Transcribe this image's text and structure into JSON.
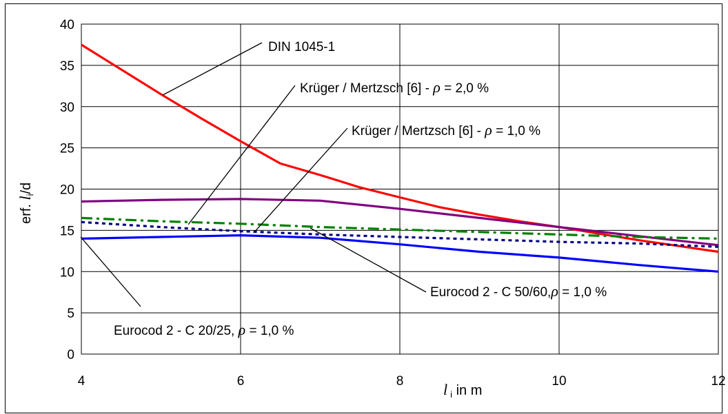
{
  "chart_data": {
    "type": "line",
    "xlabel": {
      "var": "l",
      "sub": "i",
      "rest": " in m"
    },
    "ylabel": {
      "pre": "erf. ",
      "var": "l",
      "sub": "i",
      "post": "/d"
    },
    "xlim": [
      4,
      12
    ],
    "ylim": [
      0,
      40
    ],
    "xticks": [
      "4",
      "6",
      "8",
      "10",
      "12"
    ],
    "yticks": [
      "0",
      "5",
      "10",
      "15",
      "20",
      "25",
      "30",
      "35",
      "40"
    ],
    "grid": true,
    "series": [
      {
        "name": "DIN 1045-1",
        "color": "#ff0000",
        "dash": "",
        "x": [
          4,
          4.5,
          5,
          5.5,
          6,
          6.5,
          7,
          7.5,
          8,
          8.5,
          9,
          9.5,
          10,
          10.5,
          11,
          11.5,
          12
        ],
        "y": [
          37.5,
          34.5,
          31.5,
          28.6,
          25.8,
          23.1,
          21.7,
          20.2,
          19.0,
          17.8,
          16.9,
          16.1,
          15.4,
          14.6,
          13.8,
          13.1,
          12.4
        ]
      },
      {
        "name": "Krüger / Mertzsch [6] - ρ = 2,0 %",
        "color": "#800080",
        "dash": "",
        "x": [
          4,
          5,
          6,
          7,
          8,
          9,
          10,
          11,
          12
        ],
        "y": [
          18.5,
          18.7,
          18.8,
          18.6,
          17.6,
          16.5,
          15.4,
          14.3,
          13.2
        ]
      },
      {
        "name": "Krüger / Mertzsch [6] - ρ = 1,0 %",
        "color": "#008000",
        "dash": "16,6,4,6",
        "x": [
          4,
          5,
          6,
          7,
          8,
          9,
          10,
          11,
          12
        ],
        "y": [
          16.5,
          16.1,
          15.8,
          15.4,
          15.1,
          14.8,
          14.5,
          14.2,
          14.0
        ]
      },
      {
        "name": "Eurocod 2 - C 50/60, ρ = 1,0 %",
        "color": "#000080",
        "dash": "5,5",
        "x": [
          4,
          5,
          6,
          7,
          8,
          9,
          10,
          11,
          12
        ],
        "y": [
          16.0,
          15.4,
          14.9,
          14.5,
          14.2,
          13.9,
          13.6,
          13.4,
          13.0
        ]
      },
      {
        "name": "Eurocod 2 - C 20/25, ρ = 1,0 %",
        "color": "#0000ff",
        "dash": "",
        "x": [
          4,
          5,
          6,
          7,
          8,
          9,
          10,
          11,
          12
        ],
        "y": [
          14.0,
          14.2,
          14.4,
          14.1,
          13.3,
          12.4,
          11.7,
          10.8,
          10.0
        ]
      }
    ],
    "annotations": [
      {
        "id": "din",
        "parts": [
          {
            "t": "DIN 1045-1"
          }
        ]
      },
      {
        "id": "km2",
        "parts": [
          {
            "t": "Krüger / Mertzsch [6] - "
          },
          {
            "t": "ρ",
            "i": true
          },
          {
            "t": " = 2,0 %"
          }
        ]
      },
      {
        "id": "km1",
        "parts": [
          {
            "t": "Krüger / Mertzsch [6] - "
          },
          {
            "t": "ρ",
            "i": true
          },
          {
            "t": " = 1,0 %"
          }
        ]
      },
      {
        "id": "ec50",
        "parts": [
          {
            "t": "Eurocod 2 - C 50/60,"
          },
          {
            "t": "ρ",
            "i": true
          },
          {
            "t": " = 1,0 %"
          }
        ]
      },
      {
        "id": "ec20",
        "parts": [
          {
            "t": "Eurocod 2 - C 20/25, "
          },
          {
            "t": "ρ",
            "i": true
          },
          {
            "t": " = 1,0 %"
          }
        ]
      }
    ]
  }
}
